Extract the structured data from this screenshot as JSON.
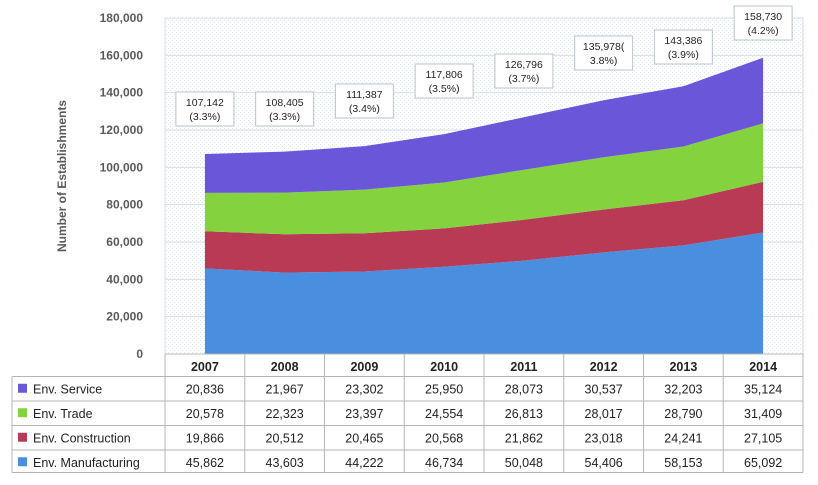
{
  "chart_data": {
    "type": "area",
    "stacked": true,
    "categories": [
      "2007",
      "2008",
      "2009",
      "2010",
      "2011",
      "2012",
      "2013",
      "2014"
    ],
    "ylabel": "Number of Establishments",
    "ylim": [
      0,
      180000
    ],
    "yticks": [
      0,
      20000,
      40000,
      60000,
      80000,
      100000,
      120000,
      140000,
      160000,
      180000
    ],
    "ytick_labels": [
      "0",
      "20,000",
      "40,000",
      "60,000",
      "80,000",
      "100,000",
      "120,000",
      "140,000",
      "160,000",
      "180,000"
    ],
    "grid": true,
    "legend_placement": "data table below chart",
    "series": [
      {
        "name": "Env. Manufacturing",
        "color": "#4a8ee0",
        "values": [
          45862,
          43603,
          44222,
          46734,
          50048,
          54406,
          58153,
          65092
        ],
        "labels": [
          "45,862",
          "43,603",
          "44,222",
          "46,734",
          "50,048",
          "54,406",
          "58,153",
          "65,092"
        ]
      },
      {
        "name": "Env. Construction",
        "color": "#b83a55",
        "values": [
          19866,
          20512,
          20465,
          20568,
          21862,
          23018,
          24241,
          27105
        ],
        "labels": [
          "19,866",
          "20,512",
          "20,465",
          "20,568",
          "21,862",
          "23,018",
          "24,241",
          "27,105"
        ]
      },
      {
        "name": "Env. Trade",
        "color": "#84d33e",
        "values": [
          20578,
          22323,
          23397,
          24554,
          26813,
          28017,
          28790,
          31409
        ],
        "labels": [
          "20,578",
          "22,323",
          "23,397",
          "24,554",
          "26,813",
          "28,017",
          "28,790",
          "31,409"
        ]
      },
      {
        "name": "Env. Service",
        "color": "#6a56d8",
        "values": [
          20836,
          21967,
          23302,
          25950,
          28073,
          30537,
          32203,
          35124
        ],
        "labels": [
          "20,836",
          "21,967",
          "23,302",
          "25,950",
          "28,073",
          "30,537",
          "32,203",
          "35,124"
        ]
      }
    ],
    "table_order": [
      "Env. Service",
      "Env. Trade",
      "Env. Construction",
      "Env. Manufacturing"
    ],
    "totals": [
      107142,
      108405,
      111387,
      117806,
      126796,
      135978,
      143386,
      158730
    ],
    "annotations": [
      {
        "line1": "107,142",
        "line2": "(3.3%)"
      },
      {
        "line1": "108,405",
        "line2": "(3.3%)"
      },
      {
        "line1": "111,387",
        "line2": "(3.4%)"
      },
      {
        "line1": "117,806",
        "line2": "(3.5%)"
      },
      {
        "line1": "126,796",
        "line2": "(3.7%)"
      },
      {
        "line1": "135,978(",
        "line2": "3.8%)"
      },
      {
        "line1": "143,386",
        "line2": "(3.9%)"
      },
      {
        "line1": "158,730",
        "line2": "(4.2%)"
      }
    ]
  }
}
